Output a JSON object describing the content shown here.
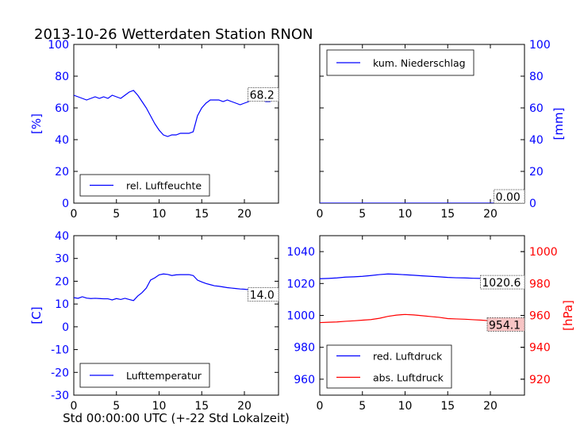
{
  "figure": {
    "title": "2013-10-26 Wetterdaten Station RNON",
    "xlabel": "Std 00:00:00 UTC (+-22 Std Lokalzeit)"
  },
  "colors": {
    "blue": "#0000ff",
    "red": "#ff0000",
    "axis": "#000000",
    "redbox": "#f7c4c4"
  },
  "chart_data": [
    {
      "id": "humidity",
      "type": "line",
      "xlim": [
        0,
        24
      ],
      "ylim": [
        0,
        100
      ],
      "xticks": [
        0,
        5,
        10,
        15,
        20
      ],
      "yticks": [
        0,
        20,
        40,
        60,
        80,
        100
      ],
      "ylabel": "[%]",
      "ylabel_color": "#0000ff",
      "ytick_color": "#0000ff",
      "legend": {
        "position": "lower-left",
        "entries": [
          {
            "label": "rel. Luftfeuchte",
            "color": "#0000ff"
          }
        ]
      },
      "annotation": {
        "text": "68.2",
        "style": "plain"
      },
      "series": [
        {
          "name": "rel. Luftfeuchte",
          "color": "#0000ff",
          "x": [
            0,
            0.5,
            1,
            1.5,
            2,
            2.5,
            3,
            3.5,
            4,
            4.5,
            5,
            5.5,
            6,
            6.5,
            7,
            7.5,
            8,
            8.5,
            9,
            9.5,
            10,
            10.5,
            11,
            11.5,
            12,
            12.5,
            13,
            13.5,
            14,
            14.5,
            15,
            15.5,
            16,
            16.5,
            17,
            17.5,
            18,
            18.5,
            19,
            19.5,
            20,
            20.5,
            21,
            21.5,
            22,
            22.5,
            23,
            23.5,
            24
          ],
          "y": [
            68,
            67,
            66,
            65,
            66,
            67,
            66,
            67,
            66,
            68,
            67,
            66,
            68,
            70,
            71,
            68,
            64,
            60,
            55,
            50,
            46,
            43,
            42,
            43,
            43,
            44,
            44,
            44,
            45,
            55,
            60,
            63,
            65,
            65,
            65,
            64,
            65,
            64,
            63,
            62,
            63,
            64,
            66,
            67,
            65,
            64,
            64,
            66,
            68.2
          ]
        }
      ]
    },
    {
      "id": "precip",
      "type": "line",
      "xlim": [
        0,
        24
      ],
      "ylim": [
        0,
        100
      ],
      "xticks": [
        0,
        5,
        10,
        15,
        20
      ],
      "yticks": [
        0,
        20,
        40,
        60,
        80,
        100
      ],
      "ylabel": "[mm]",
      "ylabel_color": "#0000ff",
      "ytick_color": "#0000ff",
      "yaxis_side": "right",
      "legend": {
        "position": "upper-left",
        "entries": [
          {
            "label": "kum. Niederschlag",
            "color": "#0000ff"
          }
        ]
      },
      "annotation": {
        "text": "0.00",
        "style": "plain"
      },
      "series": [
        {
          "name": "kum. Niederschlag",
          "color": "#0000ff",
          "x": [
            0,
            24
          ],
          "y": [
            0,
            0
          ]
        }
      ]
    },
    {
      "id": "temperature",
      "type": "line",
      "xlim": [
        0,
        24
      ],
      "ylim": [
        -30,
        40
      ],
      "xticks": [
        0,
        5,
        10,
        15,
        20
      ],
      "yticks": [
        -30,
        -20,
        -10,
        0,
        10,
        20,
        30,
        40
      ],
      "ylabel": "[C]",
      "ylabel_color": "#0000ff",
      "ytick_color": "#0000ff",
      "legend": {
        "position": "lower-left",
        "entries": [
          {
            "label": "Lufttemperatur",
            "color": "#0000ff"
          }
        ]
      },
      "annotation": {
        "text": "14.0",
        "style": "plain"
      },
      "series": [
        {
          "name": "Lufttemperatur",
          "color": "#0000ff",
          "x": [
            0,
            0.5,
            1,
            1.5,
            2,
            2.5,
            3,
            3.5,
            4,
            4.5,
            5,
            5.5,
            6,
            6.5,
            7,
            7.5,
            8,
            8.5,
            9,
            9.5,
            10,
            10.5,
            11,
            11.5,
            12,
            12.5,
            13,
            13.5,
            14,
            14.5,
            15,
            15.5,
            16,
            16.5,
            17,
            17.5,
            18,
            18.5,
            19,
            19.5,
            20,
            20.5,
            21,
            21.5,
            22,
            22.5,
            23,
            23.5,
            24
          ],
          "y": [
            12.8,
            12.5,
            13.2,
            12.6,
            12.4,
            12.5,
            12.4,
            12.3,
            12.3,
            11.8,
            12.4,
            12.0,
            12.5,
            12.0,
            11.5,
            13.5,
            15.0,
            17.0,
            20.5,
            21.5,
            22.8,
            23.2,
            23.0,
            22.5,
            22.8,
            22.9,
            22.9,
            22.9,
            22.5,
            20.5,
            19.7,
            19.0,
            18.5,
            18.0,
            17.8,
            17.5,
            17.2,
            17.0,
            16.8,
            16.6,
            16.5,
            16.3,
            16.0,
            15.8,
            15.5,
            15.0,
            14.6,
            14.3,
            14.0
          ]
        }
      ]
    },
    {
      "id": "pressure",
      "type": "line",
      "xlim": [
        0,
        24
      ],
      "ylim": [
        950,
        1050
      ],
      "xticks": [
        0,
        5,
        10,
        15,
        20
      ],
      "yticks": [
        960,
        980,
        1000,
        1020,
        1040
      ],
      "ytick_color": "#0000ff",
      "y2lim": [
        910,
        1010
      ],
      "y2ticks": [
        920,
        940,
        960,
        980,
        1000
      ],
      "y2label": "[hPa]",
      "y2_color": "#ff0000",
      "legend": {
        "position": "lower-left",
        "entries": [
          {
            "label": "red. Luftdruck",
            "color": "#0000ff"
          },
          {
            "label": "abs. Luftdruck",
            "color": "#ff0000"
          }
        ]
      },
      "annotations": [
        {
          "text": "1020.6",
          "style": "plain",
          "series": "red. Luftdruck"
        },
        {
          "text": "954.1",
          "style": "red",
          "series": "abs. Luftdruck"
        }
      ],
      "series": [
        {
          "name": "red. Luftdruck",
          "color": "#0000ff",
          "axis": "left",
          "x": [
            0,
            1,
            2,
            3,
            4,
            5,
            6,
            7,
            8,
            9,
            10,
            11,
            12,
            13,
            14,
            15,
            16,
            17,
            18,
            19,
            20,
            21,
            22,
            23,
            24
          ],
          "y": [
            1023,
            1023.2,
            1023.5,
            1024,
            1024.2,
            1024.5,
            1025,
            1025.6,
            1026,
            1025.8,
            1025.5,
            1025.2,
            1024.8,
            1024.5,
            1024.2,
            1023.8,
            1023.6,
            1023.5,
            1023.3,
            1023.2,
            1023,
            1022.6,
            1022,
            1021.2,
            1020.6
          ]
        },
        {
          "name": "abs. Luftdruck",
          "color": "#ff0000",
          "axis": "right",
          "x": [
            0,
            1,
            2,
            3,
            4,
            5,
            6,
            7,
            8,
            9,
            10,
            11,
            12,
            13,
            14,
            15,
            16,
            17,
            18,
            19,
            20,
            21,
            22,
            23,
            24
          ],
          "y": [
            955.5,
            955.7,
            955.9,
            956.3,
            956.6,
            957,
            957.4,
            958.2,
            959.4,
            960.2,
            960.6,
            960.3,
            959.8,
            959.3,
            958.8,
            958.0,
            957.8,
            957.6,
            957.3,
            957.0,
            956.6,
            956.1,
            955.5,
            954.8,
            954.1
          ]
        }
      ]
    }
  ]
}
